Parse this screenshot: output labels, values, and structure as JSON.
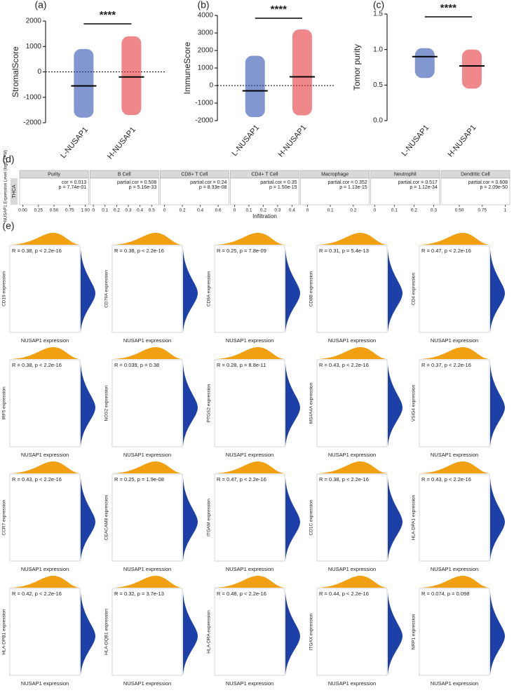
{
  "chart_data": [
    {
      "type": "dot",
      "panel_label": "(a)",
      "ylabel": "StromalScore",
      "categories": [
        "L-NUSAP1",
        "H-NUSAP1"
      ],
      "colors": [
        "#1c3fa8",
        "#e3262b"
      ],
      "center": [
        -550,
        -200
      ],
      "range": [
        [
          -1800,
          900
        ],
        [
          -1700,
          1400
        ]
      ],
      "significance": "****",
      "hline": 0,
      "ylim": [
        -2000,
        2000
      ],
      "yticks": [
        -2000,
        -1000,
        0,
        1000,
        2000
      ]
    },
    {
      "type": "dot",
      "panel_label": "(b)",
      "ylabel": "ImmuneScore",
      "categories": [
        "L-NUSAP1",
        "H-NUSAP1"
      ],
      "colors": [
        "#1c3fa8",
        "#e3262b"
      ],
      "center": [
        -300,
        500
      ],
      "range": [
        [
          -1800,
          1700
        ],
        [
          -1700,
          3200
        ]
      ],
      "significance": "****",
      "hline": 0,
      "ylim": [
        -2000,
        4000
      ],
      "yticks": [
        -2000,
        -1000,
        0,
        1000,
        2000,
        3000,
        4000
      ]
    },
    {
      "type": "dot",
      "panel_label": "(c)",
      "ylabel": "Tomor purity",
      "categories": [
        "L-NUSAP1",
        "H-NUSAP1"
      ],
      "colors": [
        "#1c3fa8",
        "#e3262b"
      ],
      "center": [
        0.9,
        0.77
      ],
      "range": [
        [
          0.6,
          1.02
        ],
        [
          0.45,
          1.0
        ]
      ],
      "significance": "****",
      "ylim": [
        0,
        1.5
      ],
      "yticks": [
        {
          "value": 0,
          "label": "0.0"
        },
        0.5,
        {
          "value": 1,
          "label": "1.0"
        },
        1.5
      ]
    },
    {
      "type": "facet-scatter",
      "panel_label": "(d)",
      "ylabel": "NUSAP1 Expression Level (log2 TPM)",
      "xlabel": "Infiltration",
      "row_label": "THCA",
      "facets": [
        {
          "name": "Purity",
          "cor": "cor = 0.013",
          "p": "p = 7.74e-01",
          "xlim": [
            -0.05,
            1.05
          ],
          "xticks": [
            {
              "value": 0,
              "label": "0.00"
            },
            {
              "value": 0.25,
              "label": "0.25"
            },
            {
              "value": 0.5,
              "label": "0.50"
            },
            {
              "value": 0.75,
              "label": "0.75"
            },
            {
              "value": 1,
              "label": "1.00"
            }
          ]
        },
        {
          "name": "B Cell",
          "cor": "partial.cor = 0.508",
          "p": "p = 5.16e-33",
          "xlim": [
            -0.03,
            0.56
          ],
          "xticks": [
            0,
            0.1,
            0.2,
            0.3,
            0.4,
            0.5
          ]
        },
        {
          "name": "CD8+ T Cell",
          "cor": "partial.cor = 0.24",
          "p": "p = 8.33e-08",
          "xlim": [
            -0.05,
            0.72
          ],
          "xticks": [
            0,
            0.2,
            0.4,
            0.6
          ]
        },
        {
          "name": "CD4+ T Cell",
          "cor": "partial.cor = 0.35",
          "p": "p = 1.50e-15",
          "xlim": [
            -0.03,
            0.45
          ],
          "xticks": [
            0,
            0.1,
            0.2,
            0.3,
            0.4
          ]
        },
        {
          "name": "Macrophage",
          "cor": "partial.cor = 0.352",
          "p": "p = 1.13e-15",
          "xlim": [
            -0.03,
            0.27
          ],
          "xticks": [
            0,
            0.1,
            0.2
          ]
        },
        {
          "name": "Neutrophil",
          "cor": "partial.cor = 0.517",
          "p": "p = 1.12e-34",
          "xlim": [
            -0.02,
            0.33
          ],
          "xticks": [
            0,
            0.1,
            0.2,
            0.3
          ]
        },
        {
          "name": "Dendritic Cell",
          "cor": "partial.cor = 0.608",
          "p": "p = 2.09e-50",
          "xlim": [
            0.3,
            1.05
          ],
          "xticks": [
            {
              "value": 0.5,
              "label": "0.50"
            },
            {
              "value": 0.75,
              "label": "0.75"
            },
            1
          ]
        }
      ]
    },
    {
      "type": "scatter-grid",
      "panel_label": "(e)",
      "xlabel": "NUSAP1 expression",
      "plots": [
        {
          "ylabel": "CD19 expression",
          "stat": "R = 0.38, p < 2.2e-16"
        },
        {
          "ylabel": "CD79A expression",
          "stat": "R = 0.38, p < 2.2e-16"
        },
        {
          "ylabel": "CD8A expression",
          "stat": "R = 0.25, p = 7.8e-09"
        },
        {
          "ylabel": "CD8B expression",
          "stat": "R = 0.31, p = 5.4e-13"
        },
        {
          "ylabel": "CD4 expression",
          "stat": "R = 0.47, p < 2.2e-16"
        },
        {
          "ylabel": "IRF5 expression",
          "stat": "R = 0.38, p < 2.2e-16"
        },
        {
          "ylabel": "NOS2 expression",
          "stat": "R = 0.039, p = 0.38"
        },
        {
          "ylabel": "PTGS2 expression",
          "stat": "R = 0.28, p = 8.8e-11"
        },
        {
          "ylabel": "MS4A4A expression",
          "stat": "R = 0.43, p < 2.2e-16"
        },
        {
          "ylabel": "VSIG4 expression",
          "stat": "R = 0.37, p < 2.2e-16"
        },
        {
          "ylabel": "CCR7 expression",
          "stat": "R = 0.43, p < 2.2e-16"
        },
        {
          "ylabel": "CEACAM8 expression",
          "stat": "R = 0.25, p = 1.9e-08"
        },
        {
          "ylabel": "ITGAM expression",
          "stat": "R = 0.47, p < 2.2e-16"
        },
        {
          "ylabel": "CD1C expression",
          "stat": "R = 0.38, p < 2.2e-16"
        },
        {
          "ylabel": "HLA-DPA1 expression",
          "stat": "R = 0.43, p < 2.2e-16"
        },
        {
          "ylabel": "HLA-DPB1 expression",
          "stat": "R = 0.42, p < 2.2e-16"
        },
        {
          "ylabel": "HLA-DQB1 expression",
          "stat": "R = 0.32, p = 3.7e-13"
        },
        {
          "ylabel": "HLA-DRA expression",
          "stat": "R = 0.48, p < 2.2e-16"
        },
        {
          "ylabel": "ITGAX expression",
          "stat": "R = 0.44, p < 2.2e-16"
        },
        {
          "ylabel": "NRP1 expression",
          "stat": "R = 0.074, p = 0.098"
        }
      ]
    }
  ]
}
